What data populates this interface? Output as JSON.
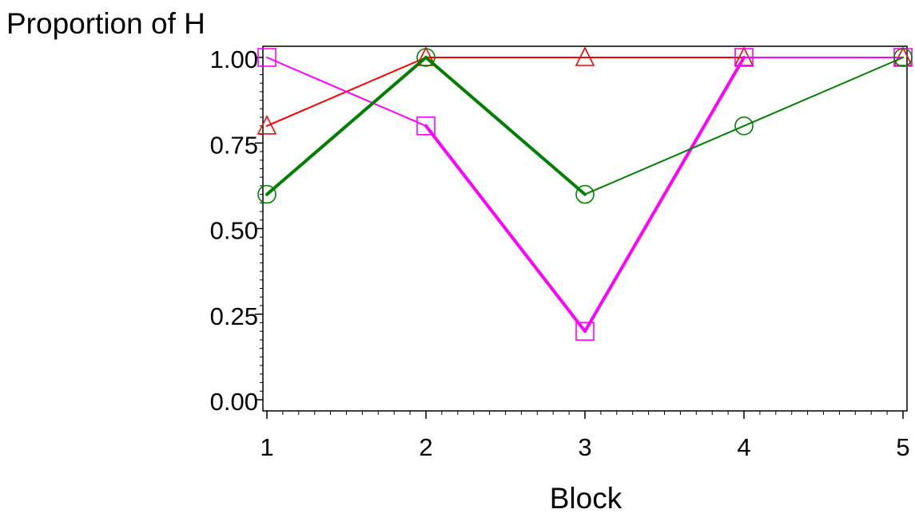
{
  "chart_data": {
    "type": "line",
    "title": "",
    "ylabel": "Proportion of H",
    "xlabel": "Block",
    "x": [
      1,
      2,
      3,
      4,
      5
    ],
    "xlim": [
      1,
      5
    ],
    "ylim": [
      0,
      1
    ],
    "x_ticks": [
      "1",
      "2",
      "3",
      "4",
      "5"
    ],
    "y_ticks": [
      "0.00",
      "0.25",
      "0.50",
      "0.75",
      "1.00"
    ],
    "grid": false,
    "legend": "none",
    "series": [
      {
        "values": [
          0.8,
          1.0,
          1.0,
          1.0,
          1.0
        ],
        "color": "#ff0000",
        "marker": "triangle",
        "line_style": [
          "thin",
          "thin",
          "thin",
          "thin"
        ]
      },
      {
        "values": [
          1.0,
          0.8,
          0.2,
          1.0,
          1.0
        ],
        "color": "#ff00ff",
        "marker": "square",
        "line_style": [
          "thin",
          "thick",
          "thick",
          "thin"
        ]
      },
      {
        "values": [
          0.6,
          1.0,
          0.6,
          0.8,
          1.0
        ],
        "color": "#008000",
        "marker": "circle",
        "line_style": [
          "thick",
          "thick",
          "thin",
          "thin"
        ]
      }
    ]
  }
}
